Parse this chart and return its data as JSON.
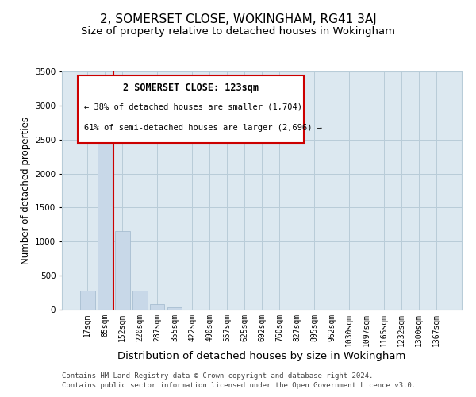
{
  "title": "2, SOMERSET CLOSE, WOKINGHAM, RG41 3AJ",
  "subtitle": "Size of property relative to detached houses in Wokingham",
  "xlabel": "Distribution of detached houses by size in Wokingham",
  "ylabel": "Number of detached properties",
  "bar_labels": [
    "17sqm",
    "85sqm",
    "152sqm",
    "220sqm",
    "287sqm",
    "355sqm",
    "422sqm",
    "490sqm",
    "557sqm",
    "625sqm",
    "692sqm",
    "760sqm",
    "827sqm",
    "895sqm",
    "962sqm",
    "1030sqm",
    "1097sqm",
    "1165sqm",
    "1232sqm",
    "1300sqm",
    "1367sqm"
  ],
  "bar_values": [
    275,
    2650,
    1150,
    275,
    80,
    40,
    0,
    0,
    0,
    0,
    0,
    0,
    0,
    0,
    0,
    0,
    0,
    0,
    0,
    0,
    0
  ],
  "bar_color": "#c8d8e8",
  "bar_edge_color": "#a0b8cc",
  "vline_color": "#cc0000",
  "ylim": [
    0,
    3500
  ],
  "yticks": [
    0,
    500,
    1000,
    1500,
    2000,
    2500,
    3000,
    3500
  ],
  "annotation_title": "2 SOMERSET CLOSE: 123sqm",
  "annotation_line1": "← 38% of detached houses are smaller (1,704)",
  "annotation_line2": "61% of semi-detached houses are larger (2,696) →",
  "annotation_box_color": "#cc0000",
  "footer_line1": "Contains HM Land Registry data © Crown copyright and database right 2024.",
  "footer_line2": "Contains public sector information licensed under the Open Government Licence v3.0.",
  "bg_color": "#ffffff",
  "plot_bg_color": "#dce8f0",
  "grid_color": "#b8ccd8",
  "title_fontsize": 11,
  "subtitle_fontsize": 9.5,
  "xlabel_fontsize": 9.5,
  "ylabel_fontsize": 8.5,
  "tick_fontsize": 7,
  "footer_fontsize": 6.5,
  "ann_fontsize_title": 8.5,
  "ann_fontsize_body": 7.5
}
